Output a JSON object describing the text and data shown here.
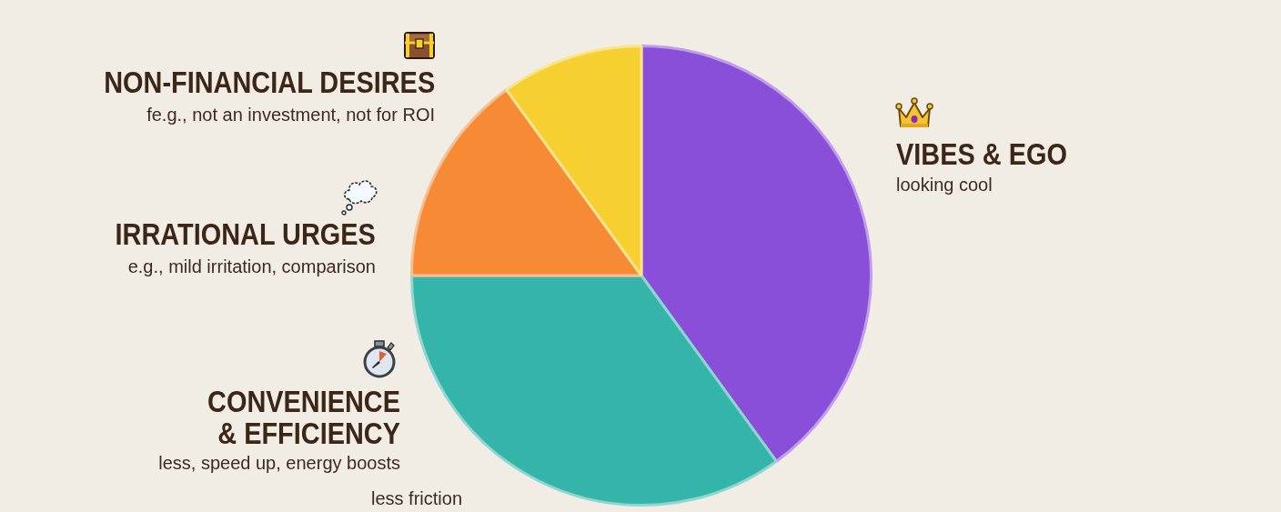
{
  "chart_data": {
    "type": "pie",
    "categories": [
      "VIBES & EGO",
      "CONVENIENCE & EFFICIENCY",
      "IRRATIONAL URGES",
      "NON-FINANCIAL DESIRES"
    ],
    "values": [
      40,
      35,
      15,
      10
    ],
    "colors": [
      "#8a4fd8",
      "#35b5aa",
      "#f68a35",
      "#f6cf30"
    ],
    "annotations": [
      "looking cool",
      "less, speed up, energy boosts",
      "less friction",
      "e.g., mild irritation, comparison",
      "fe.g., not an investment, not for ROI"
    ]
  }
}
